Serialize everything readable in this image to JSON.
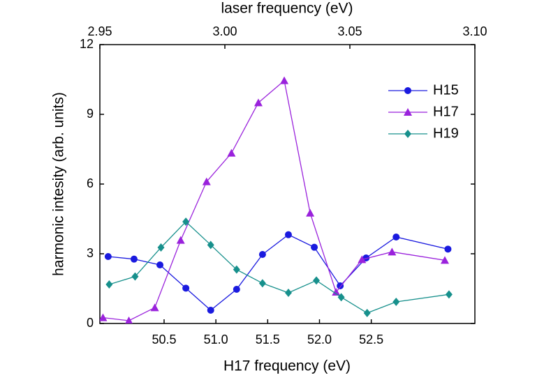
{
  "chart_data": {
    "type": "line",
    "x_label": "H17 frequency (eV)",
    "x2_label": "laser frequency (eV)",
    "y_label": "harmonic intesity (arb. units)",
    "xlim": [
      49.88,
      53.5
    ],
    "xticks": [
      50.5,
      {
        "value": 51.0,
        "label": "51.0"
      },
      51.5,
      {
        "value": 52.0,
        "label": "52.0"
      },
      52.5
    ],
    "x2lim": [
      2.95,
      3.1
    ],
    "x2ticks": [
      2.95,
      {
        "value": 3.0,
        "label": "3.00"
      },
      3.05,
      {
        "value": 3.1,
        "label": "3.10"
      }
    ],
    "ylim": [
      0,
      12
    ],
    "yticks": [
      0,
      3,
      6,
      9,
      12
    ],
    "legend": "upper right",
    "series": [
      {
        "name": "H15",
        "color": "#1a1adf",
        "marker": "circle",
        "x": [
          49.96,
          50.21,
          50.46,
          50.71,
          50.95,
          51.2,
          51.45,
          51.7,
          51.95,
          52.2,
          52.45,
          52.74,
          53.24
        ],
        "values": [
          2.88,
          2.77,
          2.52,
          1.52,
          0.57,
          1.47,
          2.97,
          3.82,
          3.28,
          1.62,
          2.82,
          3.72,
          3.2
        ]
      },
      {
        "name": "H17",
        "color": "#9a22dc",
        "marker": "triangle",
        "x": [
          49.91,
          50.16,
          50.41,
          50.66,
          50.91,
          51.15,
          51.41,
          51.66,
          51.91,
          52.16,
          52.41,
          52.7,
          53.21
        ],
        "values": [
          0.25,
          0.12,
          0.68,
          3.58,
          6.1,
          7.33,
          9.5,
          10.45,
          4.75,
          1.35,
          2.75,
          3.08,
          2.72
        ]
      },
      {
        "name": "H19",
        "color": "#17908c",
        "marker": "diamond",
        "x": [
          49.97,
          50.22,
          50.47,
          50.71,
          50.95,
          51.2,
          51.45,
          51.7,
          51.97,
          52.21,
          52.46,
          52.74,
          53.25
        ],
        "values": [
          1.68,
          2.02,
          3.27,
          4.38,
          3.38,
          2.32,
          1.73,
          1.32,
          1.85,
          1.13,
          0.45,
          0.93,
          1.25
        ]
      }
    ]
  }
}
